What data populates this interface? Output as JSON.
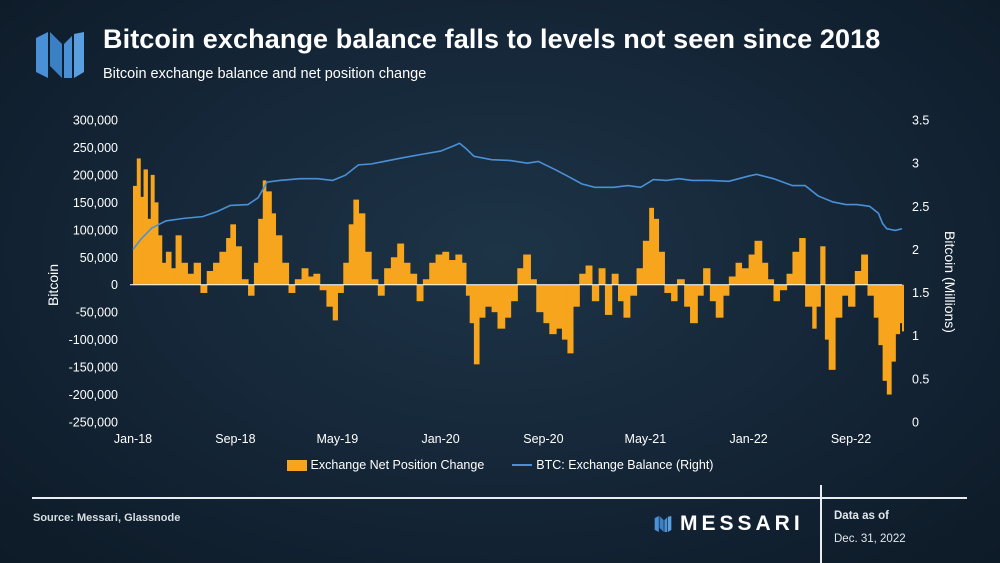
{
  "header": {
    "title": "Bitcoin exchange balance falls to levels not seen since 2018",
    "subtitle": "Bitcoin exchange balance and net position change"
  },
  "colors": {
    "bar": "#f7a51c",
    "line": "#4a90d6",
    "text": "#ffffff",
    "logo": "#4a90d6"
  },
  "chart_data": {
    "type": "bar",
    "title": "Bitcoin exchange balance falls to levels not seen since 2018",
    "subtitle": "Bitcoin exchange balance and net position change",
    "x_start": "2018-01-01",
    "x_end": "2022-12-31",
    "x_ticks": [
      {
        "label": "Jan-18",
        "date": "2018-01-01"
      },
      {
        "label": "Sep-18",
        "date": "2018-09-01"
      },
      {
        "label": "May-19",
        "date": "2019-05-01"
      },
      {
        "label": "Jan-20",
        "date": "2020-01-01"
      },
      {
        "label": "Sep-20",
        "date": "2020-09-01"
      },
      {
        "label": "May-21",
        "date": "2021-05-01"
      },
      {
        "label": "Jan-22",
        "date": "2022-01-01"
      },
      {
        "label": "Sep-22",
        "date": "2022-09-01"
      }
    ],
    "ylabel": "Bitcoin",
    "y2label": "Bitcoin (Millions)",
    "ylim": [
      -250000,
      300000
    ],
    "y_ticks": [
      300000,
      250000,
      200000,
      150000,
      100000,
      50000,
      0,
      -50000,
      -100000,
      -150000,
      -200000,
      -250000
    ],
    "y_tick_labels": [
      "300,000",
      "250,000",
      "200,000",
      "150,000",
      "100,000",
      "50,000",
      "0",
      "-50,000",
      "-100,000",
      "-150,000",
      "-200,000",
      "-250,000"
    ],
    "y2lim": [
      0,
      3.5
    ],
    "y2_ticks": [
      3.5,
      3,
      2.5,
      2,
      1.5,
      1,
      0.5,
      0
    ],
    "y2_tick_labels": [
      "3.5",
      "3",
      "2.5",
      "2",
      "1.5",
      "1",
      "0.5",
      "0"
    ],
    "grid": false,
    "legend_position": "bottom",
    "series": [
      {
        "name": "Exchange Net Position Change",
        "kind": "bar",
        "axis": "left",
        "points": [
          [
            "2018-01-01",
            180000
          ],
          [
            "2018-01-10",
            230000
          ],
          [
            "2018-01-18",
            160000
          ],
          [
            "2018-01-26",
            210000
          ],
          [
            "2018-02-04",
            120000
          ],
          [
            "2018-02-12",
            200000
          ],
          [
            "2018-02-20",
            150000
          ],
          [
            "2018-03-01",
            90000
          ],
          [
            "2018-03-10",
            40000
          ],
          [
            "2018-03-20",
            60000
          ],
          [
            "2018-04-01",
            30000
          ],
          [
            "2018-04-12",
            90000
          ],
          [
            "2018-04-25",
            40000
          ],
          [
            "2018-05-10",
            20000
          ],
          [
            "2018-05-25",
            40000
          ],
          [
            "2018-06-10",
            -15000
          ],
          [
            "2018-06-25",
            25000
          ],
          [
            "2018-07-10",
            40000
          ],
          [
            "2018-07-25",
            60000
          ],
          [
            "2018-08-10",
            85000
          ],
          [
            "2018-08-20",
            110000
          ],
          [
            "2018-09-01",
            70000
          ],
          [
            "2018-09-15",
            10000
          ],
          [
            "2018-10-01",
            -20000
          ],
          [
            "2018-10-15",
            40000
          ],
          [
            "2018-10-25",
            120000
          ],
          [
            "2018-11-05",
            190000
          ],
          [
            "2018-11-12",
            170000
          ],
          [
            "2018-11-25",
            130000
          ],
          [
            "2018-12-05",
            90000
          ],
          [
            "2018-12-20",
            40000
          ],
          [
            "2019-01-05",
            -15000
          ],
          [
            "2019-01-20",
            10000
          ],
          [
            "2019-02-05",
            30000
          ],
          [
            "2019-02-20",
            15000
          ],
          [
            "2019-03-05",
            20000
          ],
          [
            "2019-03-20",
            -10000
          ],
          [
            "2019-04-05",
            -40000
          ],
          [
            "2019-04-20",
            -65000
          ],
          [
            "2019-05-01",
            -15000
          ],
          [
            "2019-05-15",
            40000
          ],
          [
            "2019-05-28",
            110000
          ],
          [
            "2019-06-08",
            155000
          ],
          [
            "2019-06-20",
            130000
          ],
          [
            "2019-07-05",
            60000
          ],
          [
            "2019-07-20",
            10000
          ],
          [
            "2019-08-05",
            -20000
          ],
          [
            "2019-08-20",
            30000
          ],
          [
            "2019-09-05",
            50000
          ],
          [
            "2019-09-20",
            75000
          ],
          [
            "2019-10-05",
            40000
          ],
          [
            "2019-10-20",
            20000
          ],
          [
            "2019-11-05",
            -30000
          ],
          [
            "2019-11-20",
            10000
          ],
          [
            "2019-12-05",
            40000
          ],
          [
            "2019-12-20",
            55000
          ],
          [
            "2020-01-05",
            60000
          ],
          [
            "2020-01-20",
            45000
          ],
          [
            "2020-02-05",
            55000
          ],
          [
            "2020-02-20",
            40000
          ],
          [
            "2020-03-01",
            -20000
          ],
          [
            "2020-03-10",
            -70000
          ],
          [
            "2020-03-20",
            -145000
          ],
          [
            "2020-04-01",
            -60000
          ],
          [
            "2020-04-15",
            -40000
          ],
          [
            "2020-05-01",
            -50000
          ],
          [
            "2020-05-15",
            -80000
          ],
          [
            "2020-06-01",
            -60000
          ],
          [
            "2020-06-15",
            -30000
          ],
          [
            "2020-07-01",
            30000
          ],
          [
            "2020-07-15",
            55000
          ],
          [
            "2020-08-01",
            10000
          ],
          [
            "2020-08-15",
            -50000
          ],
          [
            "2020-09-01",
            -70000
          ],
          [
            "2020-09-15",
            -90000
          ],
          [
            "2020-10-01",
            -80000
          ],
          [
            "2020-10-15",
            -100000
          ],
          [
            "2020-10-28",
            -125000
          ],
          [
            "2020-11-10",
            -40000
          ],
          [
            "2020-11-25",
            20000
          ],
          [
            "2020-12-10",
            35000
          ],
          [
            "2020-12-25",
            -30000
          ],
          [
            "2021-01-10",
            30000
          ],
          [
            "2021-01-25",
            -55000
          ],
          [
            "2021-02-10",
            20000
          ],
          [
            "2021-02-25",
            -30000
          ],
          [
            "2021-03-10",
            -60000
          ],
          [
            "2021-03-25",
            -20000
          ],
          [
            "2021-04-10",
            30000
          ],
          [
            "2021-04-25",
            80000
          ],
          [
            "2021-05-10",
            140000
          ],
          [
            "2021-05-20",
            120000
          ],
          [
            "2021-06-01",
            60000
          ],
          [
            "2021-06-15",
            -15000
          ],
          [
            "2021-07-01",
            -30000
          ],
          [
            "2021-07-15",
            10000
          ],
          [
            "2021-08-01",
            -40000
          ],
          [
            "2021-08-15",
            -70000
          ],
          [
            "2021-09-01",
            -20000
          ],
          [
            "2021-09-15",
            30000
          ],
          [
            "2021-10-01",
            -30000
          ],
          [
            "2021-10-15",
            -60000
          ],
          [
            "2021-11-01",
            -20000
          ],
          [
            "2021-11-15",
            15000
          ],
          [
            "2021-12-01",
            40000
          ],
          [
            "2021-12-15",
            30000
          ],
          [
            "2022-01-01",
            55000
          ],
          [
            "2022-01-15",
            80000
          ],
          [
            "2022-02-01",
            40000
          ],
          [
            "2022-02-15",
            10000
          ],
          [
            "2022-03-01",
            -30000
          ],
          [
            "2022-03-15",
            -10000
          ],
          [
            "2022-04-01",
            20000
          ],
          [
            "2022-04-15",
            60000
          ],
          [
            "2022-05-01",
            85000
          ],
          [
            "2022-05-15",
            -40000
          ],
          [
            "2022-06-01",
            -80000
          ],
          [
            "2022-06-10",
            -40000
          ],
          [
            "2022-06-20",
            70000
          ],
          [
            "2022-07-01",
            -100000
          ],
          [
            "2022-07-10",
            -155000
          ],
          [
            "2022-07-25",
            -60000
          ],
          [
            "2022-08-10",
            -20000
          ],
          [
            "2022-08-25",
            -40000
          ],
          [
            "2022-09-10",
            25000
          ],
          [
            "2022-09-25",
            55000
          ],
          [
            "2022-10-10",
            -20000
          ],
          [
            "2022-10-25",
            -60000
          ],
          [
            "2022-11-05",
            -110000
          ],
          [
            "2022-11-15",
            -175000
          ],
          [
            "2022-11-25",
            -200000
          ],
          [
            "2022-12-05",
            -140000
          ],
          [
            "2022-12-15",
            -90000
          ],
          [
            "2022-12-25",
            -70000
          ],
          [
            "2022-12-31",
            -85000
          ]
        ]
      },
      {
        "name": "BTC: Exchange Balance (Right)",
        "kind": "line",
        "axis": "right",
        "points": [
          [
            "2018-01-01",
            2.0
          ],
          [
            "2018-01-20",
            2.12
          ],
          [
            "2018-02-15",
            2.25
          ],
          [
            "2018-03-20",
            2.33
          ],
          [
            "2018-05-01",
            2.36
          ],
          [
            "2018-06-15",
            2.38
          ],
          [
            "2018-07-20",
            2.44
          ],
          [
            "2018-08-20",
            2.51
          ],
          [
            "2018-10-01",
            2.52
          ],
          [
            "2018-10-25",
            2.6
          ],
          [
            "2018-11-15",
            2.78
          ],
          [
            "2018-12-15",
            2.8
          ],
          [
            "2019-02-01",
            2.82
          ],
          [
            "2019-03-15",
            2.82
          ],
          [
            "2019-04-20",
            2.8
          ],
          [
            "2019-05-20",
            2.86
          ],
          [
            "2019-06-20",
            2.98
          ],
          [
            "2019-07-20",
            2.99
          ],
          [
            "2019-08-20",
            3.02
          ],
          [
            "2019-10-01",
            3.06
          ],
          [
            "2019-11-15",
            3.1
          ],
          [
            "2020-01-01",
            3.14
          ],
          [
            "2020-02-01",
            3.2
          ],
          [
            "2020-02-15",
            3.23
          ],
          [
            "2020-03-01",
            3.17
          ],
          [
            "2020-03-20",
            3.08
          ],
          [
            "2020-05-01",
            3.04
          ],
          [
            "2020-06-15",
            3.03
          ],
          [
            "2020-07-25",
            3.0
          ],
          [
            "2020-08-20",
            3.02
          ],
          [
            "2020-10-01",
            2.92
          ],
          [
            "2020-11-01",
            2.84
          ],
          [
            "2020-12-01",
            2.76
          ],
          [
            "2021-01-01",
            2.72
          ],
          [
            "2021-02-15",
            2.72
          ],
          [
            "2021-03-20",
            2.74
          ],
          [
            "2021-04-20",
            2.72
          ],
          [
            "2021-05-20",
            2.81
          ],
          [
            "2021-06-20",
            2.8
          ],
          [
            "2021-07-20",
            2.82
          ],
          [
            "2021-08-20",
            2.8
          ],
          [
            "2021-10-01",
            2.8
          ],
          [
            "2021-11-15",
            2.79
          ],
          [
            "2022-01-01",
            2.85
          ],
          [
            "2022-01-20",
            2.87
          ],
          [
            "2022-03-01",
            2.82
          ],
          [
            "2022-04-15",
            2.74
          ],
          [
            "2022-05-15",
            2.74
          ],
          [
            "2022-06-15",
            2.62
          ],
          [
            "2022-07-20",
            2.55
          ],
          [
            "2022-08-20",
            2.52
          ],
          [
            "2022-09-15",
            2.52
          ],
          [
            "2022-10-15",
            2.5
          ],
          [
            "2022-11-05",
            2.42
          ],
          [
            "2022-11-15",
            2.3
          ],
          [
            "2022-11-25",
            2.24
          ],
          [
            "2022-12-15",
            2.22
          ],
          [
            "2022-12-31",
            2.24
          ]
        ]
      }
    ]
  },
  "footer": {
    "source": "Source: Messari, Glassnode",
    "brand": "MESSARI",
    "asof_label": "Data as of",
    "asof_date": "Dec. 31, 2022"
  }
}
